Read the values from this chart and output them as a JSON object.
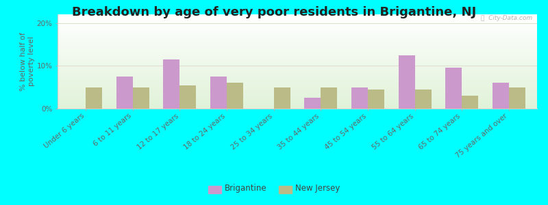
{
  "categories": [
    "Under 6 years",
    "6 to 11 years",
    "12 to 17 years",
    "18 to 24 years",
    "25 to 34 years",
    "35 to 44 years",
    "45 to 54 years",
    "55 to 64 years",
    "65 to 74 years",
    "75 years and over"
  ],
  "brigantine": [
    0.0,
    7.5,
    11.5,
    7.5,
    0.0,
    2.5,
    5.0,
    12.5,
    9.5,
    6.0
  ],
  "new_jersey": [
    5.0,
    5.0,
    5.5,
    6.0,
    5.0,
    5.0,
    4.5,
    4.5,
    3.0,
    5.0
  ],
  "brigantine_color": "#cc99cc",
  "nj_color": "#bbbb88",
  "title": "Breakdown by age of very poor residents in Brigantine, NJ",
  "ylabel": "% below half of\npoverty level",
  "ylim": [
    0,
    22
  ],
  "yticks": [
    0,
    10,
    20
  ],
  "ytick_labels": [
    "0%",
    "10%",
    "20%"
  ],
  "outer_background": "#00ffff",
  "watermark": "ⓘ  City-Data.com",
  "bar_width": 0.35,
  "title_fontsize": 13,
  "tick_fontsize": 7.5,
  "ylabel_fontsize": 8
}
